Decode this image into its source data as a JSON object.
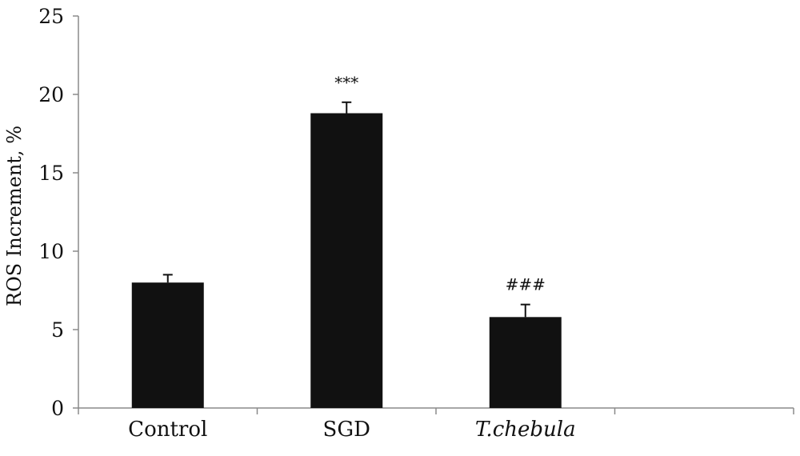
{
  "chart_data": {
    "type": "bar",
    "title": "",
    "xlabel": "",
    "ylabel": "ROS Increment, %",
    "ylim": [
      0,
      25
    ],
    "yticks": [
      0,
      5,
      10,
      15,
      20,
      25
    ],
    "categories": [
      "Control",
      "SGD",
      "T.chebula"
    ],
    "category_styles": [
      "normal",
      "normal",
      "italic"
    ],
    "values": [
      8.0,
      18.8,
      5.8
    ],
    "error_plus": [
      0.5,
      0.7,
      0.8
    ],
    "annotations": [
      "",
      "***",
      "###"
    ],
    "extra_empty_slots": 1,
    "grid": false,
    "legend": "none",
    "bar_color": "#111111",
    "axis_color": "#8a8a8a"
  }
}
